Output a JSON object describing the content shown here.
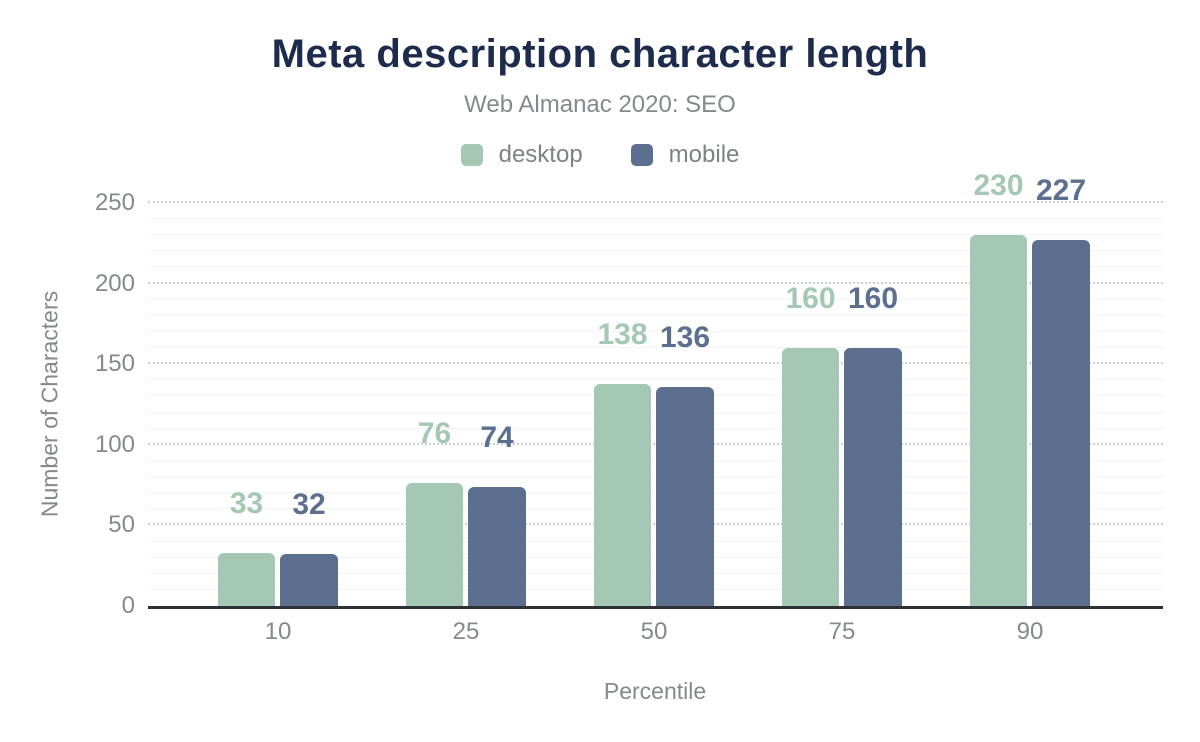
{
  "title": "Meta description character length",
  "subtitle": "Web Almanac 2020: SEO",
  "legend": [
    {
      "label": "desktop",
      "color": "#a4c8b3"
    },
    {
      "label": "mobile",
      "color": "#5d6f8e"
    }
  ],
  "chart_data": {
    "type": "bar",
    "categories": [
      "10",
      "25",
      "50",
      "75",
      "90"
    ],
    "series": [
      {
        "name": "desktop",
        "color": "#a4c8b3",
        "values": [
          33,
          76,
          138,
          160,
          230
        ]
      },
      {
        "name": "mobile",
        "color": "#5d6f8e",
        "values": [
          32,
          74,
          136,
          160,
          227
        ]
      }
    ],
    "title": "Meta description character length",
    "subtitle": "Web Almanac 2020: SEO",
    "xlabel": "Percentile",
    "ylabel": "Number of Characters",
    "ylim": [
      0,
      250
    ],
    "yticks": [
      0,
      50,
      100,
      150,
      200,
      250
    ],
    "grid": {
      "major_step": 50,
      "minor_step": 10,
      "major_style": "dotted",
      "minor_style": "solid"
    },
    "legend_position": "top",
    "data_labels": true
  },
  "colors": {
    "title": "#1d2c4c",
    "axis_text": "#85898d",
    "axis_line": "#2e3236",
    "background": "#ffffff"
  }
}
